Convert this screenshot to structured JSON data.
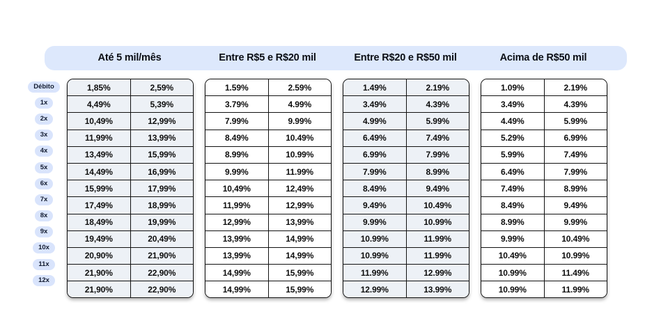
{
  "header": {
    "tiers": [
      "Até 5 mil/mês",
      "Entre R$5 e R$20 mil",
      "Entre R$20 e R$50 mil",
      "Acima de R$50 mil"
    ]
  },
  "row_labels": [
    "Débito",
    "1x",
    "2x",
    "3x",
    "4x",
    "5x",
    "6x",
    "7x",
    "8x",
    "9x",
    "10x",
    "11x",
    "12x"
  ],
  "tables": [
    {
      "tier": "Até 5 mil/mês",
      "shaded": true,
      "rows": [
        [
          "1,85%",
          "2,59%"
        ],
        [
          "4,49%",
          "5,39%"
        ],
        [
          "10,49%",
          "12,99%"
        ],
        [
          "11,99%",
          "13,99%"
        ],
        [
          "13,49%",
          "15,99%"
        ],
        [
          "14,49%",
          "16,99%"
        ],
        [
          "15,99%",
          "17,99%"
        ],
        [
          "17,49%",
          "18,99%"
        ],
        [
          "18,49%",
          "19,99%"
        ],
        [
          "19,49%",
          "20,49%"
        ],
        [
          "20,90%",
          "21,90%"
        ],
        [
          "21,90%",
          "22,90%"
        ],
        [
          "21,90%",
          "22,90%"
        ]
      ]
    },
    {
      "tier": "Entre R$5 e R$20 mil",
      "shaded": false,
      "rows": [
        [
          "1.59%",
          "2.59%"
        ],
        [
          "3.79%",
          "4.99%"
        ],
        [
          "7.99%",
          "9.99%"
        ],
        [
          "8.49%",
          "10.49%"
        ],
        [
          "8.99%",
          "10.99%"
        ],
        [
          "9.99%",
          "11.99%"
        ],
        [
          "10,49%",
          "12,49%"
        ],
        [
          "11,99%",
          "12,99%"
        ],
        [
          "12,99%",
          "13,99%"
        ],
        [
          "13,99%",
          "14,99%"
        ],
        [
          "13,99%",
          "14,99%"
        ],
        [
          "14,99%",
          "15,99%"
        ],
        [
          "14,99%",
          "15,99%"
        ]
      ]
    },
    {
      "tier": "Entre R$20 e R$50 mil",
      "shaded": true,
      "rows": [
        [
          "1.49%",
          "2.19%"
        ],
        [
          "3.49%",
          "4.39%"
        ],
        [
          "4.99%",
          "5.99%"
        ],
        [
          "6.49%",
          "7.49%"
        ],
        [
          "6.99%",
          "7.99%"
        ],
        [
          "7.99%",
          "8.99%"
        ],
        [
          "8.49%",
          "9.49%"
        ],
        [
          "9.49%",
          "10.49%"
        ],
        [
          "9.99%",
          "10.99%"
        ],
        [
          "10.99%",
          "11.99%"
        ],
        [
          "10.99%",
          "11.99%"
        ],
        [
          "11.99%",
          "12.99%"
        ],
        [
          "12.99%",
          "13.99%"
        ]
      ]
    },
    {
      "tier": "Acima de R$50 mil",
      "shaded": false,
      "rows": [
        [
          "1.09%",
          "2.19%"
        ],
        [
          "3.49%",
          "4.39%"
        ],
        [
          "4.49%",
          "5.99%"
        ],
        [
          "5.29%",
          "6.99%"
        ],
        [
          "5.99%",
          "7.49%"
        ],
        [
          "6.49%",
          "7.99%"
        ],
        [
          "7.49%",
          "8.99%"
        ],
        [
          "8.49%",
          "9.49%"
        ],
        [
          "8.99%",
          "9.99%"
        ],
        [
          "9.99%",
          "10.49%"
        ],
        [
          "10.49%",
          "10.99%"
        ],
        [
          "10.99%",
          "11.49%"
        ],
        [
          "10.99%",
          "11.99%"
        ]
      ]
    }
  ],
  "colors": {
    "header_band_bg": "#dde8fc",
    "pill_bg": "#d9e4fc",
    "shaded_cell_bg": "#edf1f6",
    "table_border": "#111111",
    "text": "#0d0d0d",
    "page_bg": "#ffffff"
  }
}
